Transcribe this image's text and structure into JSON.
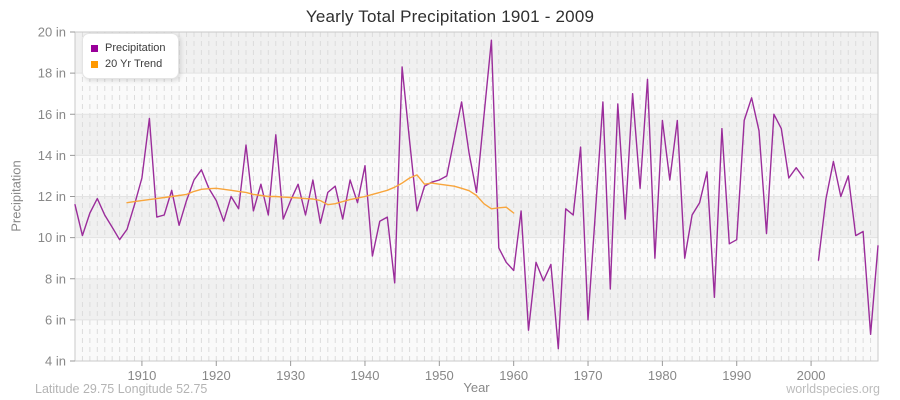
{
  "header": {
    "title": "Yearly Total Precipitation 1901 - 2009"
  },
  "legend": {
    "items": [
      {
        "label": "Precipitation",
        "color": "#990099"
      },
      {
        "label": "20 Yr Trend",
        "color": "#ff9900"
      }
    ]
  },
  "axes": {
    "y_label": "Precipitation",
    "x_label": "Year",
    "y_tick_labels": [
      "20 in",
      "18 in",
      "16 in",
      "14 in",
      "12 in",
      "10 in",
      "8 in",
      "6 in",
      "4 in"
    ],
    "y_tick_values": [
      20,
      18,
      16,
      14,
      12,
      10,
      8,
      6,
      4
    ],
    "x_tick_labels": [
      "1910",
      "1920",
      "1930",
      "1940",
      "1950",
      "1960",
      "1970",
      "1980",
      "1990",
      "2000"
    ],
    "x_tick_values": [
      1910,
      1920,
      1930,
      1940,
      1950,
      1960,
      1970,
      1980,
      1990,
      2000
    ]
  },
  "chart_data": {
    "type": "line",
    "title": "Yearly Total Precipitation 1901 - 2009",
    "xlabel": "Year",
    "ylabel": "Precipitation",
    "xlim": [
      1901,
      2009
    ],
    "ylim": [
      4,
      20
    ],
    "grid": true,
    "legend_position": "top-left",
    "band_colors": {
      "light": "#fafafa",
      "dark": "#f0f0f0"
    },
    "grid_colors": {
      "vertical_dashed": "#dcdcdc",
      "horizontal": "#e3e3e3",
      "border": "#c9c9c9",
      "tick": "#999999"
    },
    "series": [
      {
        "name": "Precipitation",
        "color": "#9b2d9b",
        "x_start": 1901,
        "note": "null = missing year (gap at 2000)",
        "values": [
          11.6,
          10.1,
          11.2,
          11.9,
          11.1,
          10.5,
          9.9,
          10.4,
          11.6,
          12.9,
          15.8,
          11.0,
          11.1,
          12.3,
          10.6,
          11.8,
          12.8,
          13.3,
          12.4,
          11.8,
          10.8,
          12.0,
          11.4,
          14.5,
          11.3,
          12.6,
          11.1,
          15.0,
          10.9,
          11.8,
          12.6,
          11.1,
          12.8,
          10.7,
          12.2,
          12.5,
          10.9,
          12.8,
          11.7,
          13.5,
          9.1,
          10.8,
          11.0,
          7.8,
          18.3,
          14.7,
          11.3,
          12.5,
          12.7,
          12.8,
          13.0,
          14.8,
          16.6,
          14.1,
          12.2,
          15.9,
          19.6,
          9.5,
          8.8,
          8.4,
          11.3,
          5.5,
          8.8,
          7.9,
          8.7,
          4.6,
          11.4,
          11.1,
          14.4,
          6.0,
          11.3,
          16.6,
          7.5,
          16.5,
          10.9,
          17.0,
          12.4,
          17.7,
          9.0,
          15.7,
          12.8,
          15.7,
          9.0,
          11.1,
          11.7,
          13.2,
          7.1,
          15.3,
          9.7,
          9.9,
          15.7,
          16.8,
          15.2,
          10.2,
          16.0,
          15.3,
          12.9,
          13.4,
          12.9,
          null,
          8.9,
          11.9,
          13.7,
          12.0,
          13.0,
          10.1,
          10.3,
          5.3,
          9.6
        ]
      },
      {
        "name": "20 Yr Trend",
        "color": "#f8a53c",
        "x_start": 1908,
        "values": [
          11.7,
          11.75,
          11.8,
          11.85,
          11.9,
          11.95,
          12.0,
          12.05,
          12.1,
          12.25,
          12.35,
          12.38,
          12.4,
          12.35,
          12.3,
          12.25,
          12.2,
          12.1,
          12.05,
          12.0,
          12.0,
          11.97,
          11.95,
          11.93,
          11.9,
          11.88,
          11.8,
          11.6,
          11.65,
          11.75,
          11.85,
          11.92,
          12.0,
          12.1,
          12.2,
          12.3,
          12.45,
          12.65,
          12.9,
          13.05,
          12.6,
          12.65,
          12.6,
          12.55,
          12.5,
          12.4,
          12.28,
          12.05,
          11.65,
          11.4,
          11.45,
          11.48,
          11.2
        ]
      }
    ]
  },
  "footer": {
    "left": "Latitude 29.75 Longitude 52.75",
    "right": "worldspecies.org"
  }
}
